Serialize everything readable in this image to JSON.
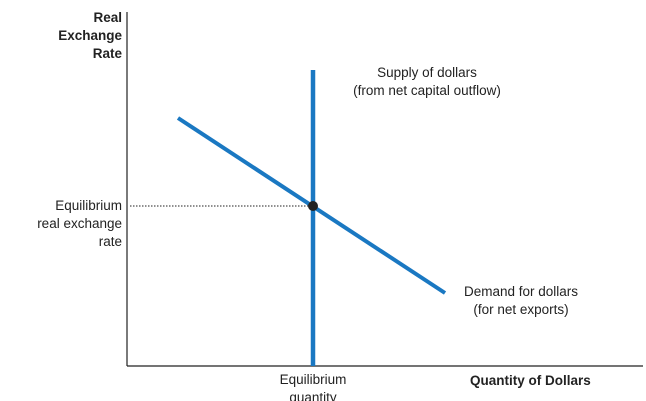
{
  "diagram": {
    "y_axis_label": [
      "Real",
      "Exchange",
      "Rate"
    ],
    "x_axis_label": "Quantity of Dollars",
    "equilibrium_rate_label": [
      "Equilibrium",
      "real exchange",
      "rate"
    ],
    "equilibrium_quantity_label": [
      "Equilibrium",
      "quantity"
    ],
    "supply_label": [
      "Supply of dollars",
      "(from net capital outflow)"
    ],
    "demand_label": [
      "Demand for dollars",
      "(for net exports)"
    ],
    "colors": {
      "curve": "#1a78c2",
      "axis": "#222222",
      "point": "#222222"
    }
  }
}
